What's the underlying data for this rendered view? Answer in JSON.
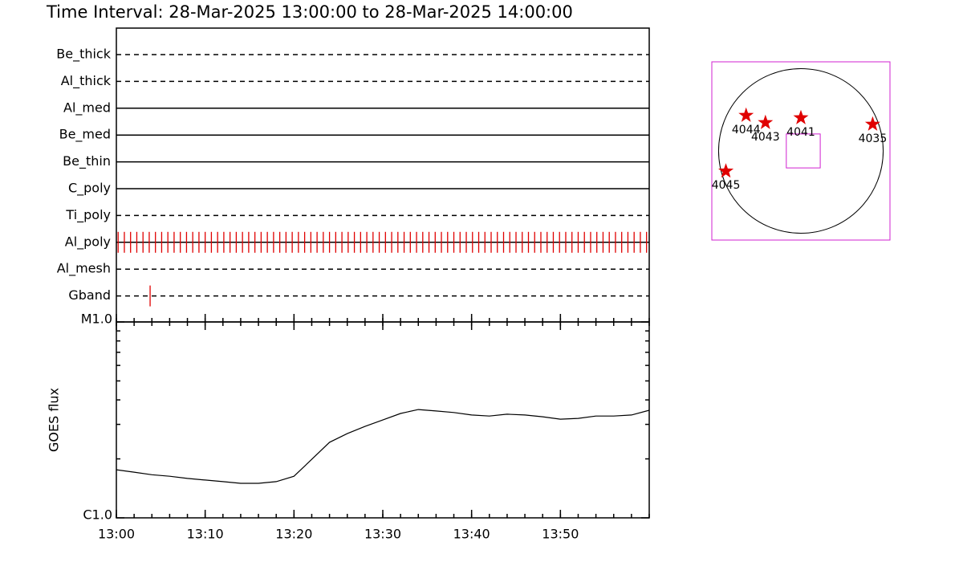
{
  "chart_data": [
    {
      "type": "timeline",
      "title": "Time Interval: 28-Mar-2025 13:00:00 to 28-Mar-2025 14:00:00",
      "xlim": [
        0,
        60
      ],
      "color": "#e00000",
      "series": [
        {
          "name": "Be_thick",
          "line_style": "dashed",
          "x": []
        },
        {
          "name": "Al_thick",
          "line_style": "dashed",
          "x": []
        },
        {
          "name": "Al_med",
          "line_style": "solid",
          "x": []
        },
        {
          "name": "Be_med",
          "line_style": "solid",
          "x": []
        },
        {
          "name": "Be_thin",
          "line_style": "solid",
          "x": []
        },
        {
          "name": "C_poly",
          "line_style": "solid",
          "x": []
        },
        {
          "name": "Ti_poly",
          "line_style": "dashed",
          "x": []
        },
        {
          "name": "Al_poly",
          "line_style": "solid",
          "x": [
            0.2,
            0.9,
            1.6,
            2.3,
            3.0,
            3.7,
            4.4,
            5.1,
            5.8,
            6.5,
            7.2,
            7.9,
            8.6,
            9.3,
            10.0,
            10.7,
            11.4,
            12.1,
            12.8,
            13.5,
            14.2,
            14.9,
            15.6,
            16.3,
            17.0,
            17.7,
            18.4,
            19.1,
            19.8,
            20.5,
            21.2,
            21.9,
            22.6,
            23.3,
            24.0,
            24.7,
            25.4,
            26.1,
            26.8,
            27.5,
            28.2,
            28.9,
            29.6,
            30.3,
            31.0,
            31.7,
            32.4,
            33.1,
            33.8,
            34.5,
            35.2,
            35.9,
            36.6,
            37.3,
            38.0,
            38.7,
            39.4,
            40.1,
            40.8,
            41.5,
            42.2,
            42.9,
            43.6,
            44.3,
            45.0,
            45.7,
            46.4,
            47.1,
            47.8,
            48.5,
            49.2,
            49.9,
            50.6,
            51.3,
            52.0,
            52.7,
            53.4,
            54.1,
            54.8,
            55.5,
            56.2,
            56.9,
            57.6,
            58.3,
            59.0,
            59.7
          ]
        },
        {
          "name": "Al_mesh",
          "line_style": "dashed",
          "x": []
        },
        {
          "name": "Gband",
          "line_style": "dashed",
          "x": [
            3.8
          ]
        }
      ]
    },
    {
      "type": "line",
      "ylabel": "GOES flux",
      "log_y": true,
      "color": "#000000",
      "xlim": [
        0,
        60
      ],
      "xticks": [
        {
          "value": 0,
          "label": "13:00"
        },
        {
          "value": 10,
          "label": "13:10"
        },
        {
          "value": 20,
          "label": "13:20"
        },
        {
          "value": 30,
          "label": "13:30"
        },
        {
          "value": 40,
          "label": "13:40"
        },
        {
          "value": 50,
          "label": "13:50"
        }
      ],
      "ylim": [
        1e-06,
        1e-05
      ],
      "yticks": [
        {
          "value": 1e-06,
          "label": "C1.0"
        },
        {
          "value": 1e-05,
          "label": "M1.0"
        }
      ],
      "x": [
        0,
        2,
        4,
        6,
        8,
        10,
        12,
        14,
        16,
        18,
        20,
        22,
        24,
        26,
        28,
        30,
        32,
        34,
        36,
        38,
        40,
        42,
        44,
        46,
        48,
        50,
        52,
        54,
        56,
        58,
        60
      ],
      "values": [
        1.76e-06,
        1.71e-06,
        1.66e-06,
        1.63e-06,
        1.59e-06,
        1.56e-06,
        1.53e-06,
        1.5e-06,
        1.5e-06,
        1.53e-06,
        1.63e-06,
        1.99e-06,
        2.43e-06,
        2.69e-06,
        2.93e-06,
        3.16e-06,
        3.41e-06,
        3.57e-06,
        3.51e-06,
        3.45e-06,
        3.35e-06,
        3.31e-06,
        3.38e-06,
        3.35e-06,
        3.28e-06,
        3.19e-06,
        3.22e-06,
        3.31e-06,
        3.31e-06,
        3.35e-06,
        3.54e-06
      ]
    },
    {
      "type": "map",
      "xlim": [
        -1050,
        1050
      ],
      "ylim": [
        -1050,
        1050
      ],
      "sun_radius": 970,
      "frame_color": "#d020d0",
      "color": "#e00000",
      "fov": {
        "x": 28,
        "y": 0,
        "width": 400,
        "height": 400
      },
      "points": [
        {
          "label": "4044",
          "x": -646,
          "y": 418
        },
        {
          "label": "4043",
          "x": -418,
          "y": 333
        },
        {
          "label": "4041",
          "x": 0,
          "y": 390
        },
        {
          "label": "4035",
          "x": 846,
          "y": 314
        },
        {
          "label": "4045",
          "x": -884,
          "y": -238
        }
      ]
    }
  ]
}
